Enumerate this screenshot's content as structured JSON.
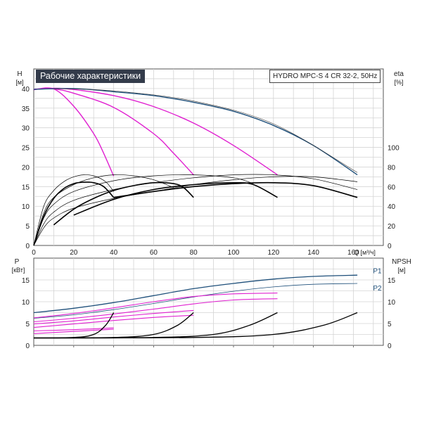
{
  "chart_data": [
    {
      "type": "line",
      "title": "Рабочие характеристики",
      "subtitle": "HYDRO MPC-S 4 CR 32-2, 50Hz",
      "xlabel": "Q [м³/ч]",
      "ylabel_left": "H",
      "ylabel_left_unit": "[м]",
      "ylabel_right": "eta",
      "ylabel_right_unit": "[%]",
      "x_ticks": [
        "0",
        "20",
        "40",
        "60",
        "80",
        "100",
        "120",
        "140",
        "160"
      ],
      "y_left_ticks": [
        "0",
        "5",
        "10",
        "15",
        "20",
        "25",
        "30",
        "35",
        "40"
      ],
      "y_right_ticks": [
        "0",
        "20",
        "40",
        "60",
        "80",
        "100"
      ],
      "xlim": [
        0,
        175
      ],
      "ylim_left": [
        0,
        45
      ],
      "ylim_right": [
        0,
        180
      ],
      "grid": true,
      "series": [
        {
          "kind": "head",
          "color": "#e020d0",
          "points": [
            [
              0,
              39.7
            ],
            [
              10,
              39.9
            ],
            [
              20,
              35.5
            ],
            [
              30,
              28.5
            ],
            [
              35,
              23.5
            ],
            [
              40,
              17.7
            ]
          ]
        },
        {
          "kind": "head",
          "color": "#e020d0",
          "points": [
            [
              0,
              39.8
            ],
            [
              10,
              39.9
            ],
            [
              20,
              38.8
            ],
            [
              40,
              35.2
            ],
            [
              60,
              28.5
            ],
            [
              70,
              23.5
            ],
            [
              80,
              18.0
            ]
          ]
        },
        {
          "kind": "head",
          "color": "#e020d0",
          "points": [
            [
              0,
              39.8
            ],
            [
              15,
              40.0
            ],
            [
              40,
              38.2
            ],
            [
              60,
              35.4
            ],
            [
              80,
              31.2
            ],
            [
              100,
              25.5
            ],
            [
              122,
              18.0
            ]
          ]
        },
        {
          "kind": "head",
          "color": "#1e4f7a",
          "points": [
            [
              0,
              39.8
            ],
            [
              20,
              40.0
            ],
            [
              40,
              39.2
            ],
            [
              60,
              38.2
            ],
            [
              80,
              36.5
            ],
            [
              100,
              34.2
            ],
            [
              120,
              30.6
            ],
            [
              140,
              25.5
            ],
            [
              162,
              18.0
            ]
          ]
        },
        {
          "kind": "head_thin",
          "color": "#333333",
          "points": [
            [
              10,
              40.0
            ],
            [
              40,
              39.4
            ],
            [
              80,
              36.8
            ],
            [
              120,
              31.0
            ],
            [
              162,
              18.6
            ]
          ]
        },
        {
          "kind": "eta",
          "color": "#000000",
          "width": 1.6,
          "points": [
            [
              0,
              0
            ],
            [
              5,
              30
            ],
            [
              10,
              48
            ],
            [
              15,
              58
            ],
            [
              20,
              63
            ],
            [
              25,
              64.5
            ],
            [
              30,
              64
            ],
            [
              35,
              60
            ],
            [
              40,
              49
            ]
          ]
        },
        {
          "kind": "eta",
          "color": "#000000",
          "width": 1.6,
          "points": [
            [
              10,
              21
            ],
            [
              20,
              37
            ],
            [
              30,
              48
            ],
            [
              40,
              56
            ],
            [
              50,
              61
            ],
            [
              60,
              64
            ],
            [
              70,
              63
            ],
            [
              75,
              59
            ],
            [
              80,
              49
            ]
          ]
        },
        {
          "kind": "eta",
          "color": "#000000",
          "width": 1.6,
          "points": [
            [
              20,
              31
            ],
            [
              40,
              47
            ],
            [
              60,
              57
            ],
            [
              80,
              62
            ],
            [
              100,
              64
            ],
            [
              110,
              62
            ],
            [
              122,
              49
            ]
          ]
        },
        {
          "kind": "eta",
          "color": "#000000",
          "width": 1.6,
          "points": [
            [
              40,
              49
            ],
            [
              60,
              55
            ],
            [
              80,
              60
            ],
            [
              100,
              63
            ],
            [
              120,
              64
            ],
            [
              140,
              61
            ],
            [
              162,
              49
            ]
          ]
        },
        {
          "kind": "eta",
          "color": "#000000",
          "width": 0.7,
          "points": [
            [
              0,
              0
            ],
            [
              5,
              40
            ],
            [
              10,
              56
            ],
            [
              15,
              65
            ],
            [
              20,
              70
            ],
            [
              25,
              72
            ],
            [
              30,
              71
            ],
            [
              36,
              65
            ],
            [
              40,
              55
            ]
          ]
        },
        {
          "kind": "eta",
          "color": "#000000",
          "width": 0.7,
          "points": [
            [
              0,
              0
            ],
            [
              5,
              33
            ],
            [
              10,
              49
            ],
            [
              20,
              62
            ],
            [
              30,
              69
            ],
            [
              40,
              72
            ],
            [
              50,
              71
            ],
            [
              60,
              67
            ],
            [
              70,
              59
            ]
          ]
        },
        {
          "kind": "eta",
          "color": "#000000",
          "width": 0.7,
          "points": [
            [
              0,
              0
            ],
            [
              5,
              28
            ],
            [
              10,
              42
            ],
            [
              20,
              55
            ],
            [
              40,
              66
            ],
            [
              60,
              71
            ],
            [
              80,
              72
            ],
            [
              100,
              69
            ],
            [
              110,
              63
            ]
          ]
        },
        {
          "kind": "eta",
          "color": "#000000",
          "width": 0.7,
          "points": [
            [
              0,
              0
            ],
            [
              5,
              22
            ],
            [
              10,
              34
            ],
            [
              20,
              46
            ],
            [
              40,
              57
            ],
            [
              60,
              64
            ],
            [
              80,
              69
            ],
            [
              100,
              72
            ],
            [
              120,
              72
            ],
            [
              140,
              68
            ],
            [
              162,
              57
            ]
          ]
        },
        {
          "kind": "eta",
          "color": "#000000",
          "width": 0.7,
          "points": [
            [
              0,
              0
            ],
            [
              5,
              18
            ],
            [
              10,
              28
            ],
            [
              20,
              38
            ],
            [
              40,
              48
            ],
            [
              60,
              55
            ],
            [
              80,
              62
            ],
            [
              100,
              67
            ],
            [
              120,
              70
            ],
            [
              140,
              70
            ],
            [
              162,
              65
            ]
          ]
        }
      ]
    },
    {
      "type": "line",
      "ylabel_left": "P",
      "ylabel_left_unit": "[кВт]",
      "ylabel_right": "NPSH",
      "ylabel_right_unit": "[м]",
      "x_ticks": [
        "0",
        "20",
        "40",
        "60",
        "80",
        "100",
        "120",
        "140",
        "160"
      ],
      "y_left_ticks": [
        "0",
        "5",
        "10",
        "15"
      ],
      "y_right_ticks": [
        "0",
        "5",
        "10",
        "15"
      ],
      "xlim": [
        0,
        175
      ],
      "ylim_left": [
        0,
        20
      ],
      "ylim_right": [
        0,
        20
      ],
      "grid": true,
      "labels": [
        {
          "text": "P1",
          "x": 160,
          "y": 17.2
        },
        {
          "text": "P2",
          "x": 160,
          "y": 13.2
        }
      ],
      "series": [
        {
          "kind": "P1",
          "color": "#1e4f7a",
          "points": [
            [
              0,
              7.5
            ],
            [
              20,
              8.5
            ],
            [
              40,
              9.8
            ],
            [
              60,
              11.4
            ],
            [
              80,
              13.0
            ],
            [
              100,
              14.2
            ],
            [
              120,
              15.2
            ],
            [
              140,
              15.8
            ],
            [
              162,
              16.1
            ]
          ]
        },
        {
          "kind": "P2",
          "color": "#1e4f7a",
          "thin": true,
          "points": [
            [
              0,
              6.2
            ],
            [
              20,
              7.0
            ],
            [
              40,
              8.2
            ],
            [
              60,
              9.6
            ],
            [
              80,
              11.1
            ],
            [
              100,
              12.4
            ],
            [
              120,
              13.4
            ],
            [
              140,
              14.0
            ],
            [
              162,
              14.2
            ]
          ]
        },
        {
          "kind": "P",
          "color": "#e020d0",
          "points": [
            [
              0,
              6.3
            ],
            [
              20,
              7.3
            ],
            [
              40,
              8.6
            ],
            [
              60,
              10.0
            ],
            [
              80,
              11.2
            ],
            [
              100,
              11.8
            ],
            [
              122,
              12.0
            ]
          ]
        },
        {
          "kind": "P",
          "color": "#e020d0",
          "points": [
            [
              0,
              5.4
            ],
            [
              20,
              6.2
            ],
            [
              40,
              7.2
            ],
            [
              60,
              8.3
            ],
            [
              80,
              9.5
            ],
            [
              100,
              10.4
            ],
            [
              122,
              10.7
            ]
          ]
        },
        {
          "kind": "P",
          "color": "#e020d0",
          "points": [
            [
              0,
              4.9
            ],
            [
              20,
              5.6
            ],
            [
              40,
              6.5
            ],
            [
              60,
              7.3
            ],
            [
              80,
              8.0
            ]
          ]
        },
        {
          "kind": "P",
          "color": "#e020d0",
          "points": [
            [
              0,
              4.1
            ],
            [
              20,
              4.9
            ],
            [
              40,
              5.7
            ],
            [
              60,
              6.4
            ],
            [
              80,
              6.9
            ]
          ]
        },
        {
          "kind": "P",
          "color": "#e020d0",
          "points": [
            [
              0,
              3.3
            ],
            [
              20,
              3.6
            ],
            [
              40,
              4.0
            ]
          ]
        },
        {
          "kind": "P",
          "color": "#e020d0",
          "points": [
            [
              0,
              2.7
            ],
            [
              20,
              3.2
            ],
            [
              40,
              3.7
            ]
          ]
        },
        {
          "kind": "NPSH",
          "color": "#000000",
          "points": [
            [
              0,
              1.7
            ],
            [
              20,
              1.8
            ],
            [
              30,
              2.5
            ],
            [
              36,
              4.6
            ],
            [
              40,
              7.5
            ]
          ]
        },
        {
          "kind": "NPSH",
          "color": "#000000",
          "points": [
            [
              0,
              1.7
            ],
            [
              40,
              1.8
            ],
            [
              60,
              2.5
            ],
            [
              72,
              4.6
            ],
            [
              80,
              7.5
            ]
          ]
        },
        {
          "kind": "NPSH",
          "color": "#000000",
          "points": [
            [
              0,
              1.7
            ],
            [
              60,
              1.8
            ],
            [
              90,
              2.5
            ],
            [
              108,
              4.6
            ],
            [
              122,
              7.5
            ]
          ]
        },
        {
          "kind": "NPSH",
          "color": "#000000",
          "points": [
            [
              0,
              1.7
            ],
            [
              80,
              1.8
            ],
            [
              120,
              2.5
            ],
            [
              145,
              4.6
            ],
            [
              162,
              7.5
            ]
          ]
        }
      ]
    }
  ]
}
